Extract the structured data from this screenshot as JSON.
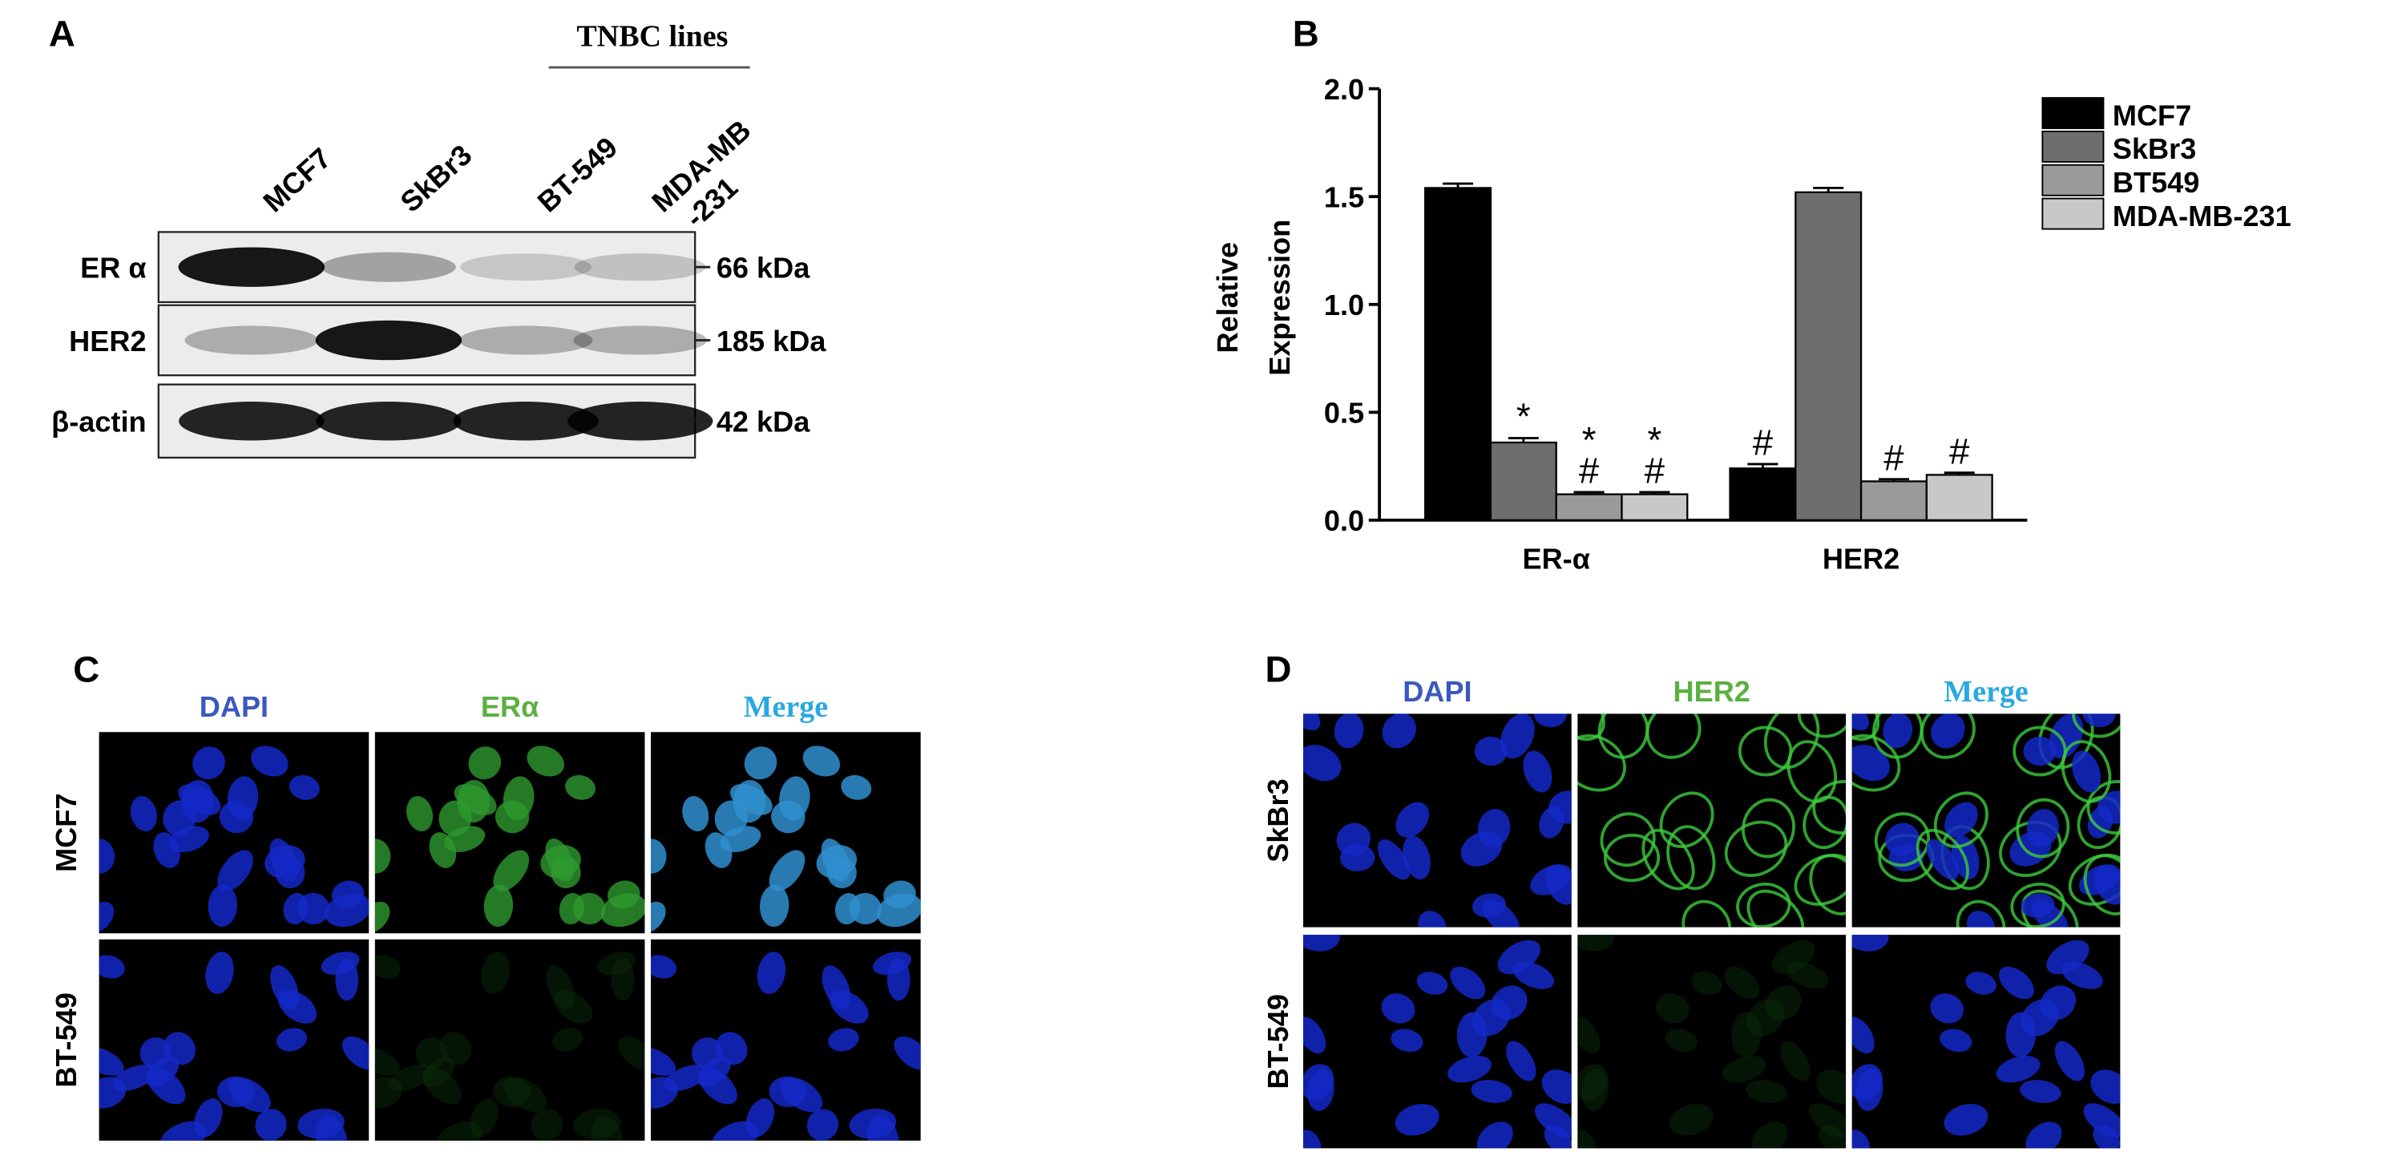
{
  "panel_a": {
    "label": "A",
    "header": "TNBC lines",
    "lanes": [
      [
        "MCF7"
      ],
      [
        "SkBr3"
      ],
      [
        "BT-549"
      ],
      [
        "MDA-MB",
        "-231"
      ]
    ],
    "rows": [
      {
        "label": "ER α",
        "size": "66 kDa"
      },
      {
        "label": "HER2",
        "size": "185 kDa"
      },
      {
        "label": "β-actin",
        "size": "42 kDa"
      }
    ]
  },
  "chart_data": {
    "type": "bar",
    "panel_label": "B",
    "ylabel": [
      "Relative",
      "Expression"
    ],
    "categories": [
      "ER-α",
      "HER2"
    ],
    "series": [
      {
        "name": "MCF7",
        "color": "#000000",
        "values": [
          1.54,
          0.24
        ],
        "errors": [
          0.02,
          0.02
        ],
        "annotations": [
          [],
          [
            "#"
          ]
        ]
      },
      {
        "name": "SkBr3",
        "color": "#6e6e6e",
        "values": [
          0.36,
          1.52
        ],
        "errors": [
          0.02,
          0.02
        ],
        "annotations": [
          [
            "*"
          ],
          []
        ]
      },
      {
        "name": "BT549",
        "color": "#9a9a9a",
        "values": [
          0.12,
          0.18
        ],
        "errors": [
          0.01,
          0.01
        ],
        "annotations": [
          [
            "*",
            "#"
          ],
          [
            "#"
          ]
        ]
      },
      {
        "name": "MDA-MB-231",
        "color": "#c8c8c8",
        "values": [
          0.12,
          0.21
        ],
        "errors": [
          0.01,
          0.01
        ],
        "annotations": [
          [
            "*",
            "#"
          ],
          [
            "#"
          ]
        ]
      }
    ],
    "ylim": [
      0,
      2
    ],
    "yticks": [
      {
        "value": 0,
        "label": "0.0"
      },
      {
        "value": 0.5,
        "label": "0.5"
      },
      {
        "value": 1,
        "label": "1.0"
      },
      {
        "value": 1.5,
        "label": "1.5"
      },
      {
        "value": 2,
        "label": "2.0"
      }
    ],
    "legend": "upper right"
  },
  "panel_c": {
    "label": "C",
    "columns": [
      "DAPI",
      "ERα",
      "Merge"
    ],
    "rows": [
      "MCF7",
      "BT-549"
    ]
  },
  "panel_d": {
    "label": "D",
    "columns": [
      "DAPI",
      "HER2",
      "Merge"
    ],
    "rows": [
      "SkBr3",
      "BT-549"
    ]
  }
}
